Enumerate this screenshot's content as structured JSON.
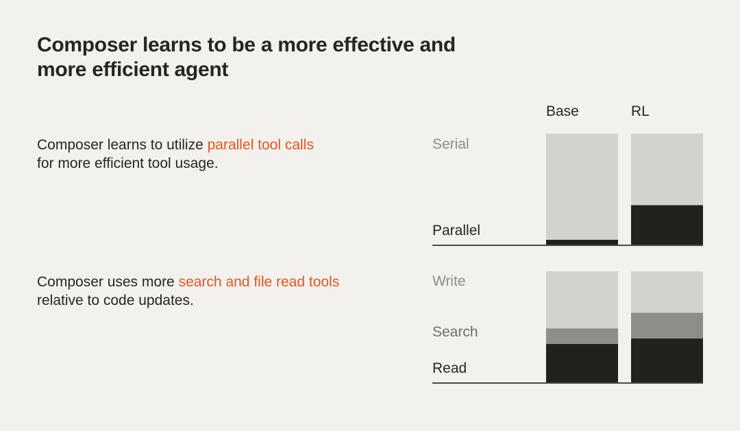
{
  "title": "Composer learns to be a more effective and more efficient agent",
  "colors": {
    "background": "#f2f1ed",
    "highlight": "#e8541a",
    "light": "#d3d2ce",
    "mid": "#8e8d89",
    "dark": "#22211d"
  },
  "columns": [
    "Base",
    "RL"
  ],
  "sections": [
    {
      "text_before": "Composer learns to utilize ",
      "highlight": "parallel tool calls",
      "text_after": " for more efficient tool usage."
    },
    {
      "text_before": "Composer uses more ",
      "highlight": "search and file read tools",
      "text_after": " relative to code updates."
    }
  ],
  "chart_data": [
    {
      "type": "bar",
      "stacked": true,
      "unit": "share of tool calls (%)",
      "categories": [
        "Base",
        "RL"
      ],
      "series": [
        {
          "name": "Parallel",
          "values": [
            5,
            36
          ],
          "color": "#22211d"
        },
        {
          "name": "Serial",
          "values": [
            95,
            64
          ],
          "color": "#d3d2ce"
        }
      ]
    },
    {
      "type": "bar",
      "stacked": true,
      "unit": "share of tool calls (%)",
      "categories": [
        "Base",
        "RL"
      ],
      "series": [
        {
          "name": "Read",
          "values": [
            35,
            40
          ],
          "color": "#22211d"
        },
        {
          "name": "Search",
          "values": [
            14,
            23
          ],
          "color": "#8e8d89"
        },
        {
          "name": "Write",
          "values": [
            51,
            37
          ],
          "color": "#d3d2ce"
        }
      ]
    }
  ]
}
